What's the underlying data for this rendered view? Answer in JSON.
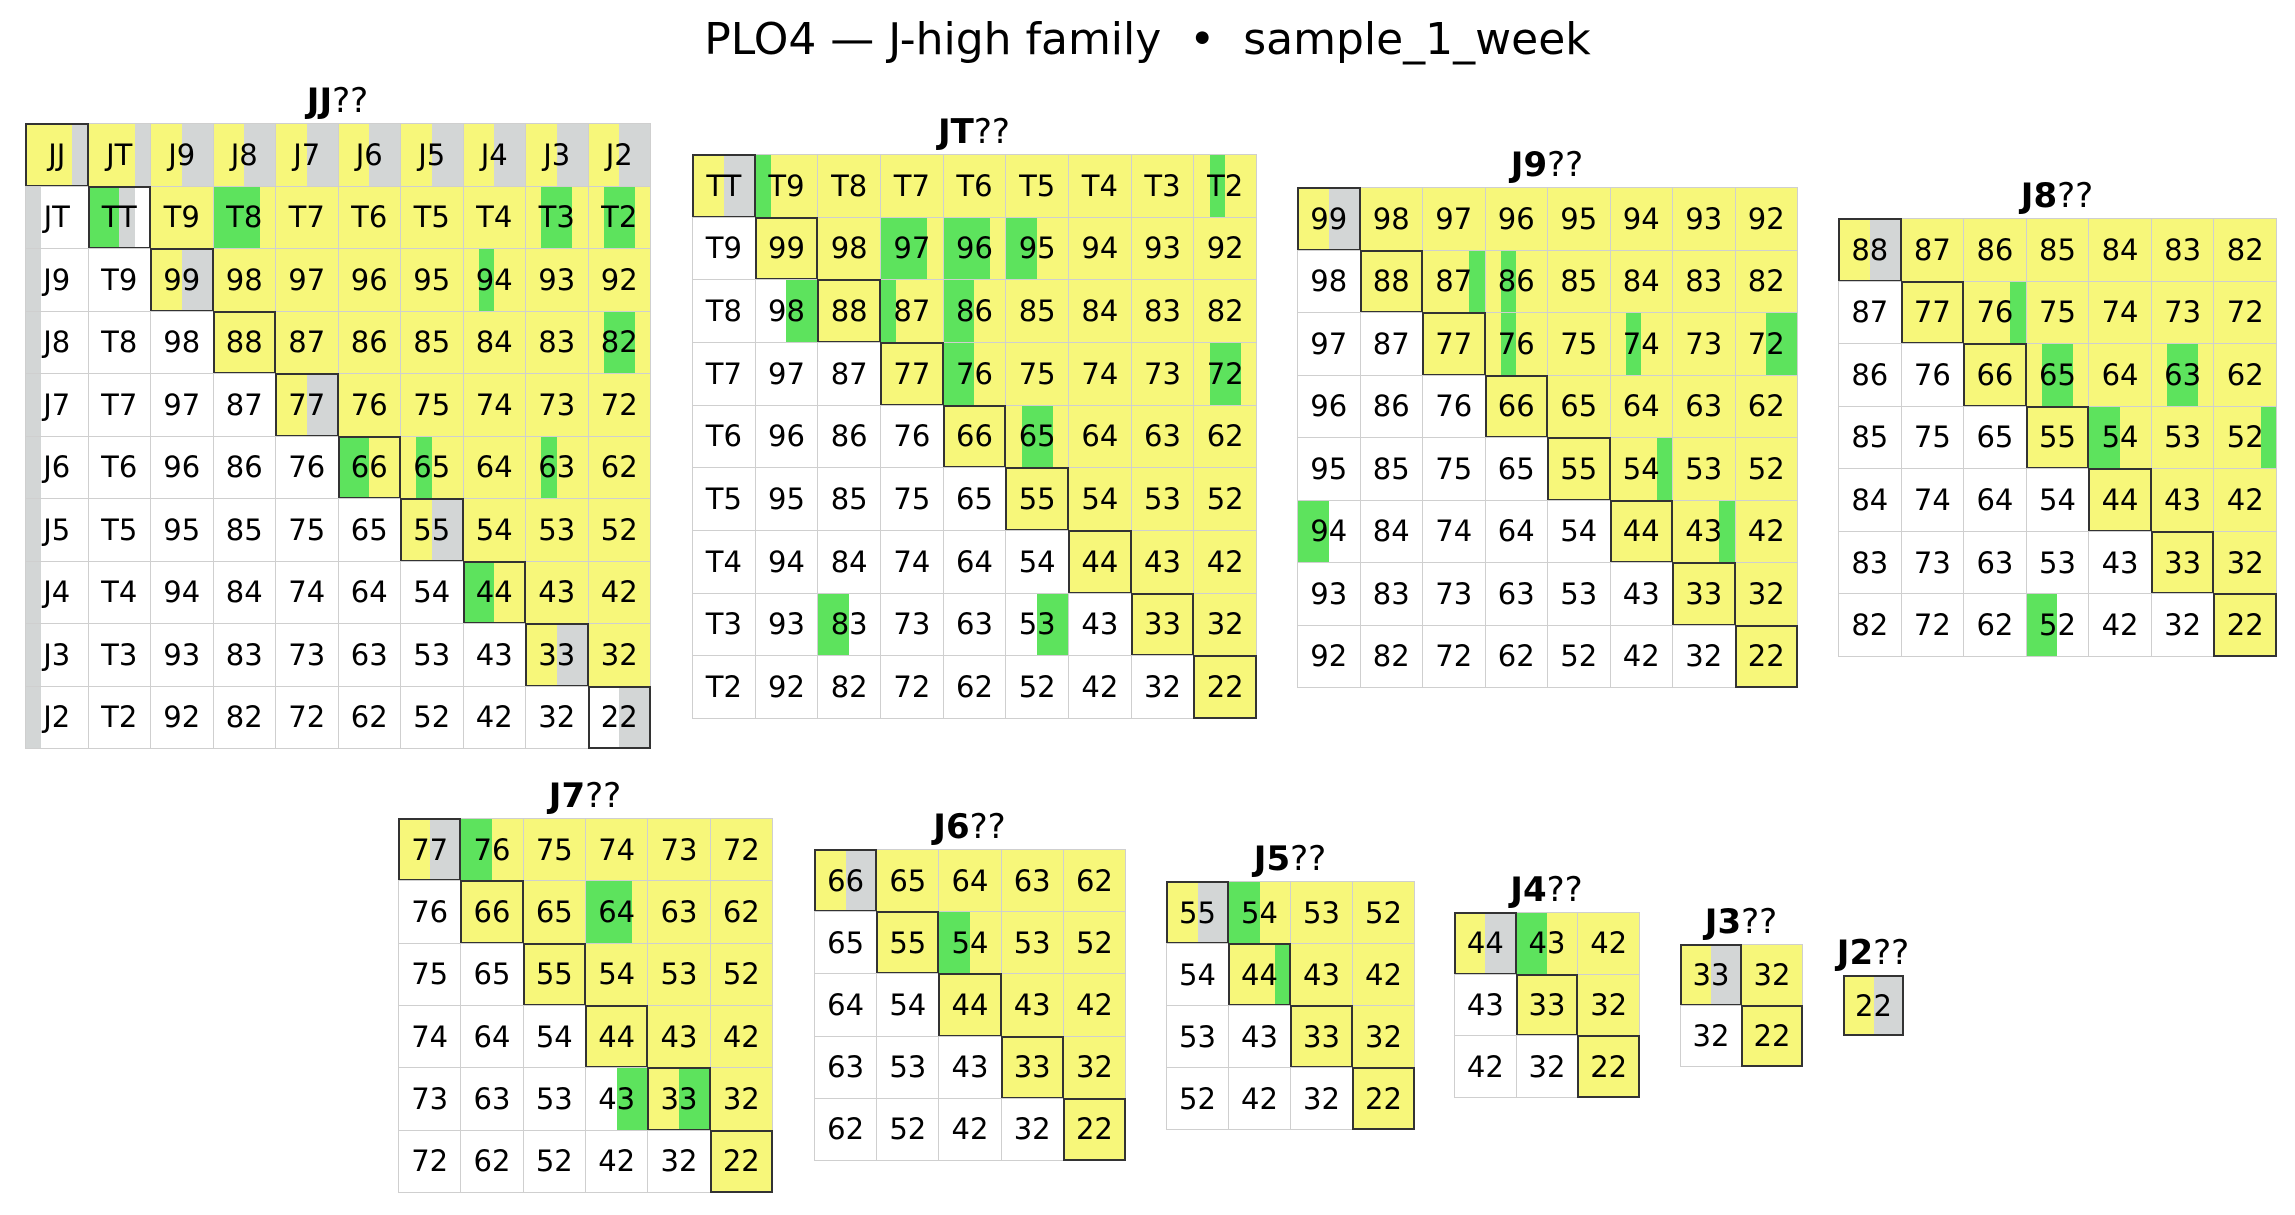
{
  "title": "PLO4 — J-high family  •  sample_1_week",
  "colors": {
    "yellow": "#f7f77a",
    "green": "#5de35d",
    "gray": "#d3d6d6",
    "grid_line": "#cfcfcf",
    "diag_border": "#333333"
  },
  "chart_data": {
    "type": "heatmap",
    "ranks": [
      "J",
      "T",
      "9",
      "8",
      "7",
      "6",
      "5",
      "4",
      "3",
      "2"
    ],
    "cell_fill_legend": {
      "y": "yellow",
      "g": "green",
      "w": "gray"
    },
    "cell_fill_note": "each cell is split into 4 columns; each letter is one column's colour; '.' = white",
    "grids": [
      {
        "prefix": "JJ",
        "suffix": "??",
        "row_labels": [
          "JJ",
          "JT",
          "J9",
          "J8",
          "J7",
          "J6",
          "J5",
          "J4",
          "J3",
          "J2"
        ],
        "column_labels": [
          "JJ",
          "JT",
          "J9",
          "J8",
          "J7",
          "J6",
          "J5",
          "J4",
          "J3",
          "J2"
        ],
        "cells": [
          [
            "yyyw",
            "yyyw",
            "yyww",
            "yyww",
            "yyww",
            "yyww",
            "yyww",
            "yyww",
            "yyww",
            "yyww"
          ],
          [
            "w...",
            "ggw.",
            "yyyy",
            "gggy",
            "yyyy",
            "yyyy",
            "yyyy",
            "yyyy",
            "yggy",
            "yggy"
          ],
          [
            "w...",
            "....",
            "yyww",
            "yyyy",
            "yyyy",
            "yyyy",
            "yyyy",
            "ygyy",
            "yyyy",
            "yyyy"
          ],
          [
            "w...",
            "....",
            "....",
            "yyyy",
            "yyyy",
            "yyyy",
            "yyyy",
            "yyyy",
            "yyyy",
            "yggy"
          ],
          [
            "w...",
            "....",
            "....",
            "....",
            "yyww",
            "yyyy",
            "yyyy",
            "yyyy",
            "yyyy",
            "yyyy"
          ],
          [
            "w...",
            "....",
            "....",
            "....",
            "....",
            "ggyy",
            "ygyy",
            "yyyy",
            "ygyy",
            "yyyy"
          ],
          [
            "w...",
            "....",
            "....",
            "....",
            "....",
            "....",
            "yyww",
            "yyyy",
            "yyyy",
            "yyyy"
          ],
          [
            "w...",
            "....",
            "....",
            "....",
            "....",
            "....",
            "....",
            "ggyy",
            "yyyy",
            "yyyy"
          ],
          [
            "w...",
            "....",
            "....",
            "....",
            "....",
            "....",
            "....",
            "....",
            "yyww",
            "yyyy"
          ],
          [
            "w...",
            "....",
            "....",
            "....",
            "....",
            "....",
            "....",
            "....",
            "....",
            "..ww"
          ]
        ]
      },
      {
        "prefix": "JT",
        "suffix": "??",
        "row_labels": [
          "TT",
          "T9",
          "T8",
          "T7",
          "T6",
          "T5",
          "T4",
          "T3",
          "T2"
        ],
        "column_labels": [
          "TT",
          "T9",
          "T8",
          "T7",
          "T6",
          "T5",
          "T4",
          "T3",
          "T2"
        ],
        "cells": [
          [
            "yyww",
            "gyyy",
            "yyyy",
            "yyyy",
            "yyyy",
            "yyyy",
            "yyyy",
            "yyyy",
            "ygyy"
          ],
          [
            "....",
            "yyyy",
            "yyyy",
            "gggy",
            "gggy",
            "ggyy",
            "yyyy",
            "yyyy",
            "yyyy"
          ],
          [
            "....",
            "..gg",
            "yyyy",
            "gyyy",
            "ggyy",
            "yyyy",
            "yyyy",
            "yyyy",
            "yyyy"
          ],
          [
            "....",
            "....",
            "....",
            "yyyy",
            "ggyy",
            "yyyy",
            "yyyy",
            "yyyy",
            "yggy"
          ],
          [
            "....",
            "....",
            "....",
            "....",
            "yyyy",
            "yggy",
            "yyyy",
            "yyyy",
            "yyyy"
          ],
          [
            "....",
            "....",
            "....",
            "....",
            "....",
            "yyyy",
            "yyyy",
            "yyyy",
            "yyyy"
          ],
          [
            "....",
            "....",
            "....",
            "....",
            "....",
            "....",
            "yyyy",
            "yyyy",
            "yyyy"
          ],
          [
            "....",
            "....",
            "gg..",
            "....",
            "....",
            "..gg",
            "....",
            "yyyy",
            "yyyy"
          ],
          [
            "....",
            "....",
            "....",
            "....",
            "....",
            "....",
            "....",
            "....",
            "yyyy"
          ]
        ]
      },
      {
        "prefix": "J9",
        "suffix": "??",
        "row_labels": [
          "99",
          "98",
          "97",
          "96",
          "95",
          "94",
          "93",
          "92"
        ],
        "column_labels": [
          "99",
          "98",
          "97",
          "96",
          "95",
          "94",
          "93",
          "92"
        ],
        "cells": [
          [
            "yyww",
            "yyyy",
            "yyyy",
            "yyyy",
            "yyyy",
            "yyyy",
            "yyyy",
            "yyyy"
          ],
          [
            "....",
            "yyyy",
            "yyyg",
            "ygyy",
            "yyyy",
            "yyyy",
            "yyyy",
            "yyyy"
          ],
          [
            "....",
            "....",
            "yyyy",
            "ygyy",
            "yyyy",
            "ygyy",
            "yyyy",
            "yygg"
          ],
          [
            "....",
            "....",
            "....",
            "yyyy",
            "yyyy",
            "yyyy",
            "yyyy",
            "yyyy"
          ],
          [
            "....",
            "....",
            "....",
            "....",
            "yyyy",
            "yyyg",
            "yyyy",
            "yyyy"
          ],
          [
            "gg..",
            "....",
            "....",
            "....",
            "....",
            "yyyy",
            "yyyg",
            "yyyy"
          ],
          [
            "....",
            "....",
            "....",
            "....",
            "....",
            "....",
            "yyyy",
            "yyyy"
          ],
          [
            "....",
            "....",
            "....",
            "....",
            "....",
            "....",
            "....",
            "yyyy"
          ]
        ]
      },
      {
        "prefix": "J8",
        "suffix": "??",
        "row_labels": [
          "88",
          "87",
          "86",
          "85",
          "84",
          "83",
          "82"
        ],
        "column_labels": [
          "88",
          "87",
          "86",
          "85",
          "84",
          "83",
          "82"
        ],
        "cells": [
          [
            "yyww",
            "yyyy",
            "yyyy",
            "yyyy",
            "yyyy",
            "yyyy",
            "yyyy"
          ],
          [
            "....",
            "yyyy",
            "yyyg",
            "yyyy",
            "yyyy",
            "yyyy",
            "yyyy"
          ],
          [
            "....",
            "....",
            "yyyy",
            "yggy",
            "yyyy",
            "yggy",
            "yyyy"
          ],
          [
            "....",
            "....",
            "....",
            "yyyy",
            "ggyy",
            "yyyy",
            "yyyg"
          ],
          [
            "....",
            "....",
            "....",
            "....",
            "yyyy",
            "yyyy",
            "yyyy"
          ],
          [
            "....",
            "....",
            "....",
            "....",
            "....",
            "yyyy",
            "yyyy"
          ],
          [
            "....",
            "....",
            "....",
            "gg..",
            "....",
            "....",
            "yyyy"
          ]
        ]
      },
      {
        "prefix": "J7",
        "suffix": "??",
        "row_labels": [
          "77",
          "76",
          "75",
          "74",
          "73",
          "72"
        ],
        "column_labels": [
          "77",
          "76",
          "75",
          "74",
          "73",
          "72"
        ],
        "cells": [
          [
            "yyww",
            "ggyy",
            "yyyy",
            "yyyy",
            "yyyy",
            "yyyy"
          ],
          [
            "....",
            "yyyy",
            "yyyy",
            "gggy",
            "yyyy",
            "yyyy"
          ],
          [
            "....",
            "....",
            "yyyy",
            "yyyy",
            "yyyy",
            "yyyy"
          ],
          [
            "....",
            "....",
            "....",
            "yyyy",
            "yyyy",
            "yyyy"
          ],
          [
            "....",
            "....",
            "....",
            "..gg",
            "yygg",
            "yyyy"
          ],
          [
            "....",
            "....",
            "....",
            "....",
            "....",
            "yyyy"
          ]
        ]
      },
      {
        "prefix": "J6",
        "suffix": "??",
        "row_labels": [
          "66",
          "65",
          "64",
          "63",
          "62"
        ],
        "column_labels": [
          "66",
          "65",
          "64",
          "63",
          "62"
        ],
        "cells": [
          [
            "yyww",
            "yyyy",
            "yyyy",
            "yyyy",
            "yyyy"
          ],
          [
            "....",
            "yyyy",
            "ggyy",
            "yyyy",
            "yyyy"
          ],
          [
            "....",
            "....",
            "yyyy",
            "yyyy",
            "yyyy"
          ],
          [
            "....",
            "....",
            "....",
            "yyyy",
            "yyyy"
          ],
          [
            "....",
            "....",
            "....",
            "....",
            "yyyy"
          ]
        ]
      },
      {
        "prefix": "J5",
        "suffix": "??",
        "row_labels": [
          "55",
          "54",
          "53",
          "52"
        ],
        "column_labels": [
          "55",
          "54",
          "53",
          "52"
        ],
        "cells": [
          [
            "yyww",
            "ggyy",
            "yyyy",
            "yyyy"
          ],
          [
            "....",
            "yyyg",
            "yyyy",
            "yyyy"
          ],
          [
            "....",
            "....",
            "yyyy",
            "yyyy"
          ],
          [
            "....",
            "....",
            "....",
            "yyyy"
          ]
        ]
      },
      {
        "prefix": "J4",
        "suffix": "??",
        "row_labels": [
          "44",
          "43",
          "42"
        ],
        "column_labels": [
          "44",
          "43",
          "42"
        ],
        "cells": [
          [
            "yyww",
            "ggyy",
            "yyyy"
          ],
          [
            "....",
            "yyyy",
            "yyyy"
          ],
          [
            "....",
            "....",
            "yyyy"
          ]
        ]
      },
      {
        "prefix": "J3",
        "suffix": "??",
        "row_labels": [
          "33",
          "32"
        ],
        "column_labels": [
          "33",
          "32"
        ],
        "cells": [
          [
            "yyww",
            "yyyy"
          ],
          [
            "....",
            "yyyy"
          ]
        ]
      },
      {
        "prefix": "J2",
        "suffix": "??",
        "row_labels": [
          "22"
        ],
        "column_labels": [
          "22"
        ],
        "cells": [
          [
            "yyww"
          ]
        ]
      }
    ]
  }
}
